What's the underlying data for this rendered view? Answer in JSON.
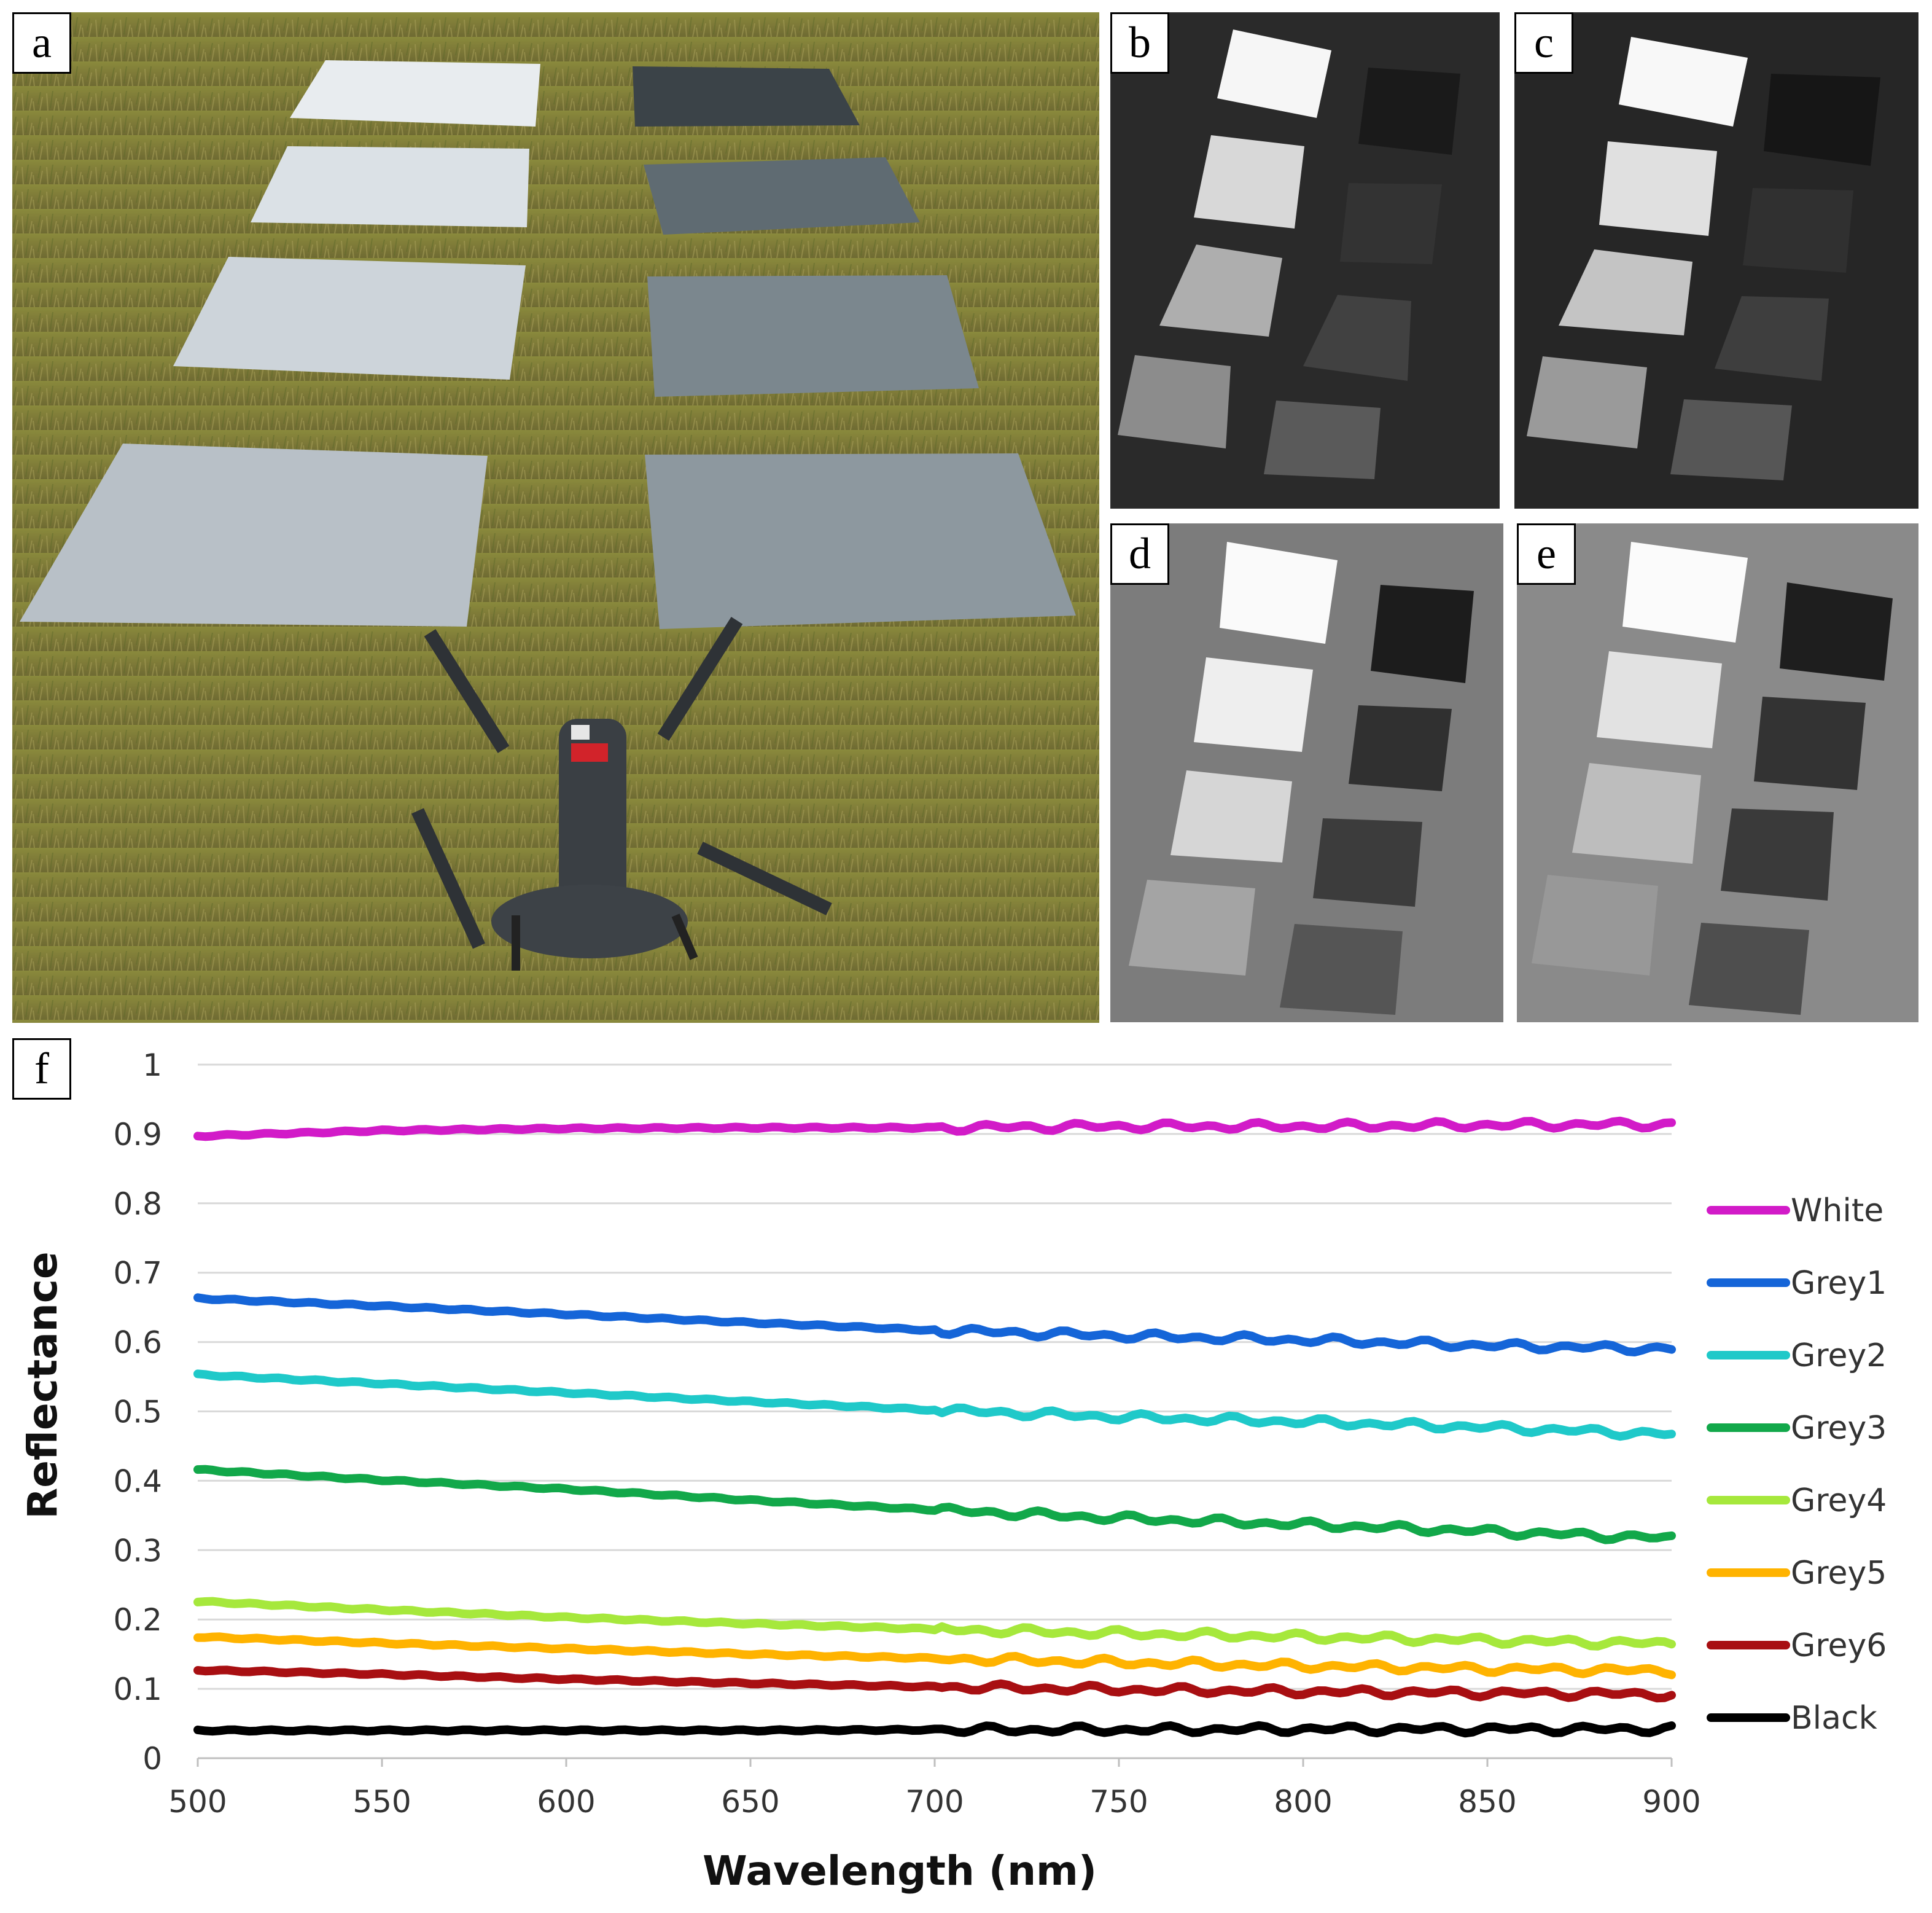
{
  "panels": {
    "a": "a",
    "b": "b",
    "c": "c",
    "d": "d",
    "e": "e",
    "f": "f"
  },
  "chart_data": {
    "type": "line",
    "title": "",
    "xlabel": "Wavelength (nm)",
    "ylabel": "Reflectance",
    "xlim": [
      500,
      900
    ],
    "ylim": [
      0,
      1
    ],
    "xticks": [
      500,
      550,
      600,
      650,
      700,
      750,
      800,
      850,
      900
    ],
    "yticks": [
      0,
      0.1,
      0.2,
      0.3,
      0.4,
      0.5,
      0.6,
      0.7,
      0.8,
      0.9,
      1
    ],
    "ytick_labels": [
      "0",
      "0.1",
      "0.2",
      "0.3",
      "0.4",
      "0.5",
      "0.6",
      "0.7",
      "0.8",
      "0.9",
      "1"
    ],
    "grid": "horizontal",
    "legend_position": "right",
    "x": [
      500,
      550,
      600,
      650,
      700,
      750,
      800,
      850,
      900
    ],
    "series": [
      {
        "name": "White",
        "color": "#d21bc8",
        "values": [
          0.897,
          0.905,
          0.908,
          0.909,
          0.909,
          0.911,
          0.911,
          0.913,
          0.914
        ]
      },
      {
        "name": "Grey1",
        "color": "#1565d8",
        "values": [
          0.663,
          0.652,
          0.64,
          0.628,
          0.617,
          0.609,
          0.603,
          0.595,
          0.59
        ]
      },
      {
        "name": "Grey2",
        "color": "#1fc9c9",
        "values": [
          0.553,
          0.54,
          0.527,
          0.514,
          0.502,
          0.492,
          0.485,
          0.477,
          0.467
        ]
      },
      {
        "name": "Grey3",
        "color": "#12a84a",
        "values": [
          0.416,
          0.401,
          0.388,
          0.372,
          0.358,
          0.346,
          0.337,
          0.327,
          0.317
        ]
      },
      {
        "name": "Grey4",
        "color": "#a6e83c",
        "values": [
          0.226,
          0.214,
          0.203,
          0.194,
          0.186,
          0.18,
          0.175,
          0.17,
          0.165
        ]
      },
      {
        "name": "Grey5",
        "color": "#ffb300",
        "values": [
          0.175,
          0.166,
          0.158,
          0.15,
          0.144,
          0.138,
          0.133,
          0.129,
          0.126
        ]
      },
      {
        "name": "Grey6",
        "color": "#a80f12",
        "values": [
          0.127,
          0.121,
          0.114,
          0.108,
          0.103,
          0.099,
          0.096,
          0.094,
          0.092
        ]
      },
      {
        "name": "Black",
        "color": "#000000",
        "values": [
          0.04,
          0.04,
          0.04,
          0.04,
          0.041,
          0.041,
          0.042,
          0.042,
          0.042
        ]
      }
    ]
  }
}
